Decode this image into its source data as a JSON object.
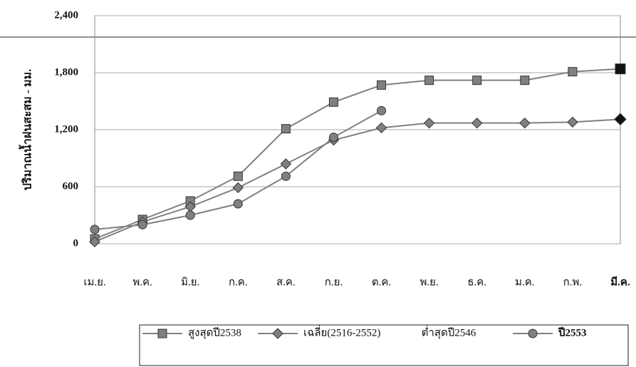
{
  "chart_data": {
    "type": "line",
    "y_label": "ปริมาณน้ำฝนสะสม - มม.",
    "categories": [
      "เม.ย.",
      "พ.ค.",
      "มิ.ย.",
      "ก.ค.",
      "ส.ค.",
      "ก.ย.",
      "ต.ค.",
      "พ.ย.",
      "ธ.ค.",
      "ม.ค.",
      "ก.พ.",
      "มี.ค."
    ],
    "series": [
      {
        "name": "สูงสุดปี2538",
        "color": "#808080",
        "marker": "square",
        "values": [
          50,
          255,
          450,
          710,
          1210,
          1490,
          1670,
          1720,
          1720,
          1720,
          1810,
          1840
        ]
      },
      {
        "name": "เฉลี่ย(2516-2552)",
        "color": "#808080",
        "marker": "diamond",
        "values": [
          20,
          230,
          390,
          590,
          840,
          1090,
          1220,
          1270,
          1270,
          1270,
          1280,
          1310
        ]
      },
      {
        "name": "ต่ำสุดปี2546",
        "color": "#ffffff",
        "marker": "none",
        "values": [
          null,
          null,
          null,
          null,
          null,
          null,
          null,
          null,
          null,
          null,
          null,
          null
        ]
      },
      {
        "name": "ปี2553",
        "color": "#808080",
        "marker": "circle",
        "values": [
          150,
          200,
          300,
          420,
          710,
          1120,
          1400,
          null,
          null,
          null,
          null,
          null
        ]
      }
    ],
    "ylim": [
      0,
      2400
    ],
    "yticks": [
      0,
      600,
      {
        "value": 1200,
        "label": "1,200"
      },
      {
        "value": 1800,
        "label": "1,800"
      },
      {
        "value": 2400,
        "label": "2,400"
      }
    ],
    "grid": true
  }
}
